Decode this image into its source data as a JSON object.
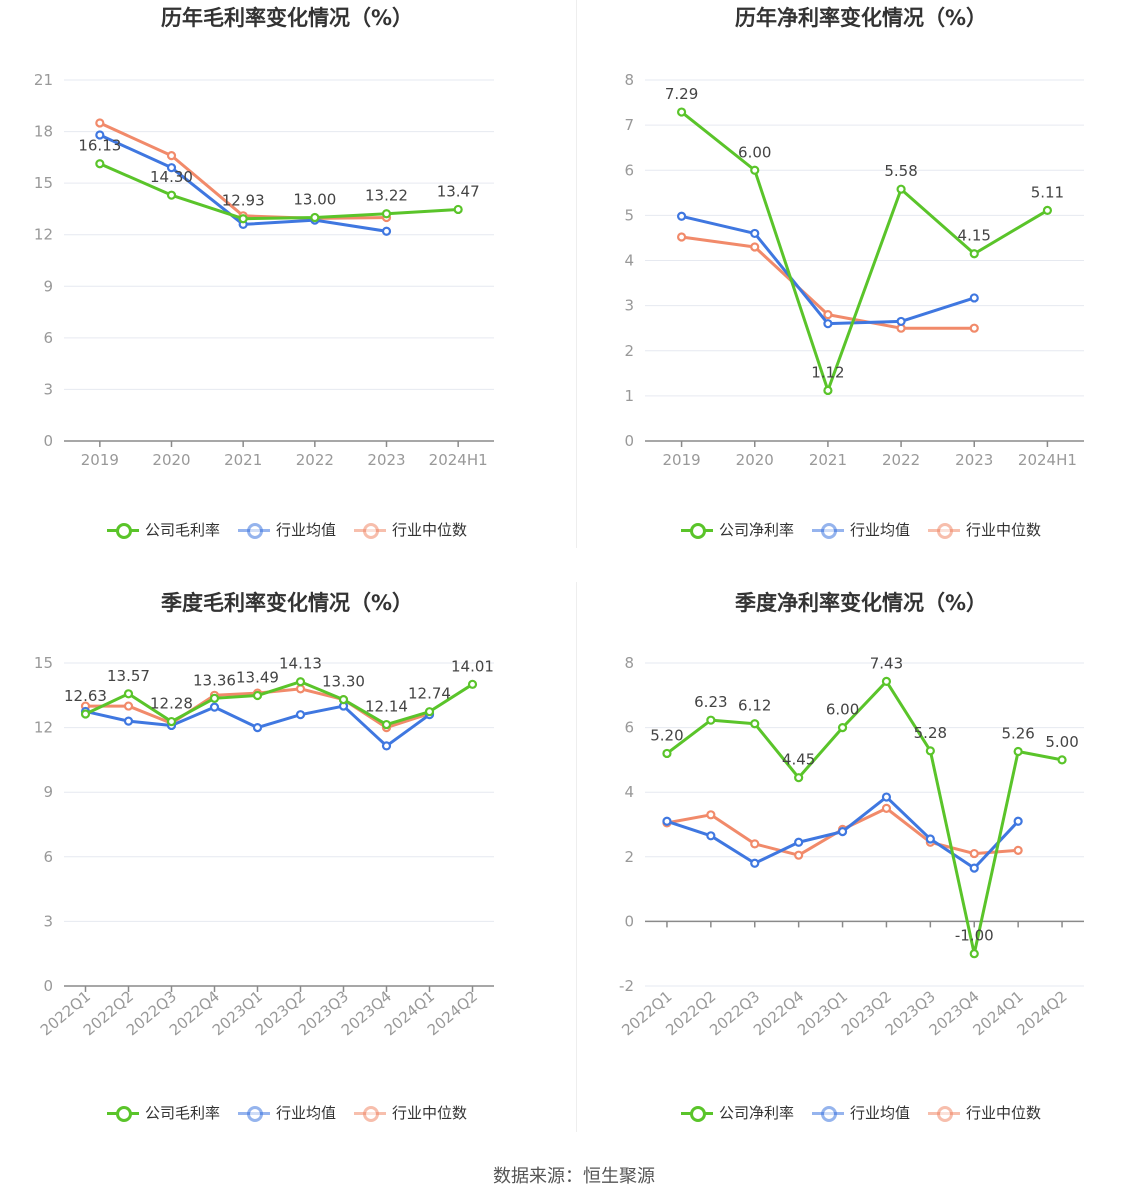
{
  "colors": {
    "company": "#5ac42a",
    "avg": "#3f77e0",
    "median": "#f18a6a",
    "grid": "#e6e9f0",
    "axis": "#999999"
  },
  "source": "数据来源：恒生聚源",
  "chart_data": [
    {
      "type": "line",
      "title": "历年毛利率变化情况（%）",
      "categories": [
        "2019",
        "2020",
        "2021",
        "2022",
        "2023",
        "2024H1"
      ],
      "ylim": [
        0,
        21
      ],
      "yticks": [
        0,
        3,
        6,
        9,
        12,
        15,
        18,
        21
      ],
      "legend": [
        "公司毛利率",
        "行业均值",
        "行业中位数"
      ],
      "labels": [
        "16.13",
        "14.30",
        "12.93",
        "13.00",
        "13.22",
        "13.47"
      ],
      "series": [
        {
          "name": "公司毛利率",
          "values": [
            16.13,
            14.3,
            12.93,
            13.0,
            13.22,
            13.47
          ]
        },
        {
          "name": "行业均值",
          "values": [
            17.8,
            15.9,
            12.6,
            12.85,
            12.2,
            null
          ]
        },
        {
          "name": "行业中位数",
          "values": [
            18.5,
            16.6,
            13.1,
            12.95,
            13.0,
            null
          ]
        }
      ]
    },
    {
      "type": "line",
      "title": "历年净利率变化情况（%）",
      "categories": [
        "2019",
        "2020",
        "2021",
        "2022",
        "2023",
        "2024H1"
      ],
      "ylim": [
        0,
        8
      ],
      "yticks": [
        0,
        1,
        2,
        3,
        4,
        5,
        6,
        7,
        8
      ],
      "legend": [
        "公司净利率",
        "行业均值",
        "行业中位数"
      ],
      "labels": [
        "7.29",
        "6.00",
        "1.12",
        "5.58",
        "4.15",
        "5.11"
      ],
      "series": [
        {
          "name": "公司净利率",
          "values": [
            7.29,
            6.0,
            1.12,
            5.58,
            4.15,
            5.11
          ]
        },
        {
          "name": "行业均值",
          "values": [
            4.98,
            4.6,
            2.6,
            2.65,
            3.17,
            null
          ]
        },
        {
          "name": "行业中位数",
          "values": [
            4.52,
            4.3,
            2.8,
            2.5,
            2.5,
            null
          ]
        }
      ]
    },
    {
      "type": "line",
      "title": "季度毛利率变化情况（%）",
      "categories": [
        "2022Q1",
        "2022Q2",
        "2022Q3",
        "2022Q4",
        "2023Q1",
        "2023Q2",
        "2023Q3",
        "2023Q4",
        "2024Q1",
        "2024Q2"
      ],
      "ylim": [
        0,
        15
      ],
      "yticks": [
        0,
        3,
        6,
        9,
        12,
        15
      ],
      "legend": [
        "公司毛利率",
        "行业均值",
        "行业中位数"
      ],
      "labels": [
        "12.63",
        "13.57",
        "12.28",
        "13.36",
        "13.49",
        "14.13",
        "13.30",
        "12.14",
        "12.74",
        "14.01"
      ],
      "series": [
        {
          "name": "公司毛利率",
          "values": [
            12.63,
            13.57,
            12.28,
            13.36,
            13.49,
            14.13,
            13.3,
            12.14,
            12.74,
            14.01
          ]
        },
        {
          "name": "行业均值",
          "values": [
            12.75,
            12.3,
            12.1,
            12.95,
            12.0,
            12.6,
            13.0,
            11.15,
            12.6,
            null
          ]
        },
        {
          "name": "行业中位数",
          "values": [
            13.0,
            13.0,
            12.2,
            13.5,
            13.6,
            13.8,
            13.3,
            12.0,
            12.65,
            null
          ]
        }
      ]
    },
    {
      "type": "line",
      "title": "季度净利率变化情况（%）",
      "categories": [
        "2022Q1",
        "2022Q2",
        "2022Q3",
        "2022Q4",
        "2023Q1",
        "2023Q2",
        "2023Q3",
        "2023Q4",
        "2024Q1",
        "2024Q2"
      ],
      "ylim": [
        -2,
        8
      ],
      "yticks": [
        -2,
        0,
        2,
        4,
        6,
        8
      ],
      "legend": [
        "公司净利率",
        "行业均值",
        "行业中位数"
      ],
      "labels": [
        "5.20",
        "6.23",
        "6.12",
        "4.45",
        "6.00",
        "7.43",
        "5.28",
        "-1.00",
        "5.26",
        "5.00"
      ],
      "series": [
        {
          "name": "公司净利率",
          "values": [
            5.2,
            6.23,
            6.12,
            4.45,
            6.0,
            7.43,
            5.28,
            -1.0,
            5.26,
            5.0
          ]
        },
        {
          "name": "行业均值",
          "values": [
            3.1,
            2.65,
            1.8,
            2.45,
            2.78,
            3.85,
            2.55,
            1.65,
            3.1,
            null
          ]
        },
        {
          "name": "行业中位数",
          "values": [
            3.05,
            3.3,
            2.4,
            2.05,
            2.85,
            3.5,
            2.45,
            2.1,
            2.2,
            null
          ]
        }
      ]
    }
  ]
}
